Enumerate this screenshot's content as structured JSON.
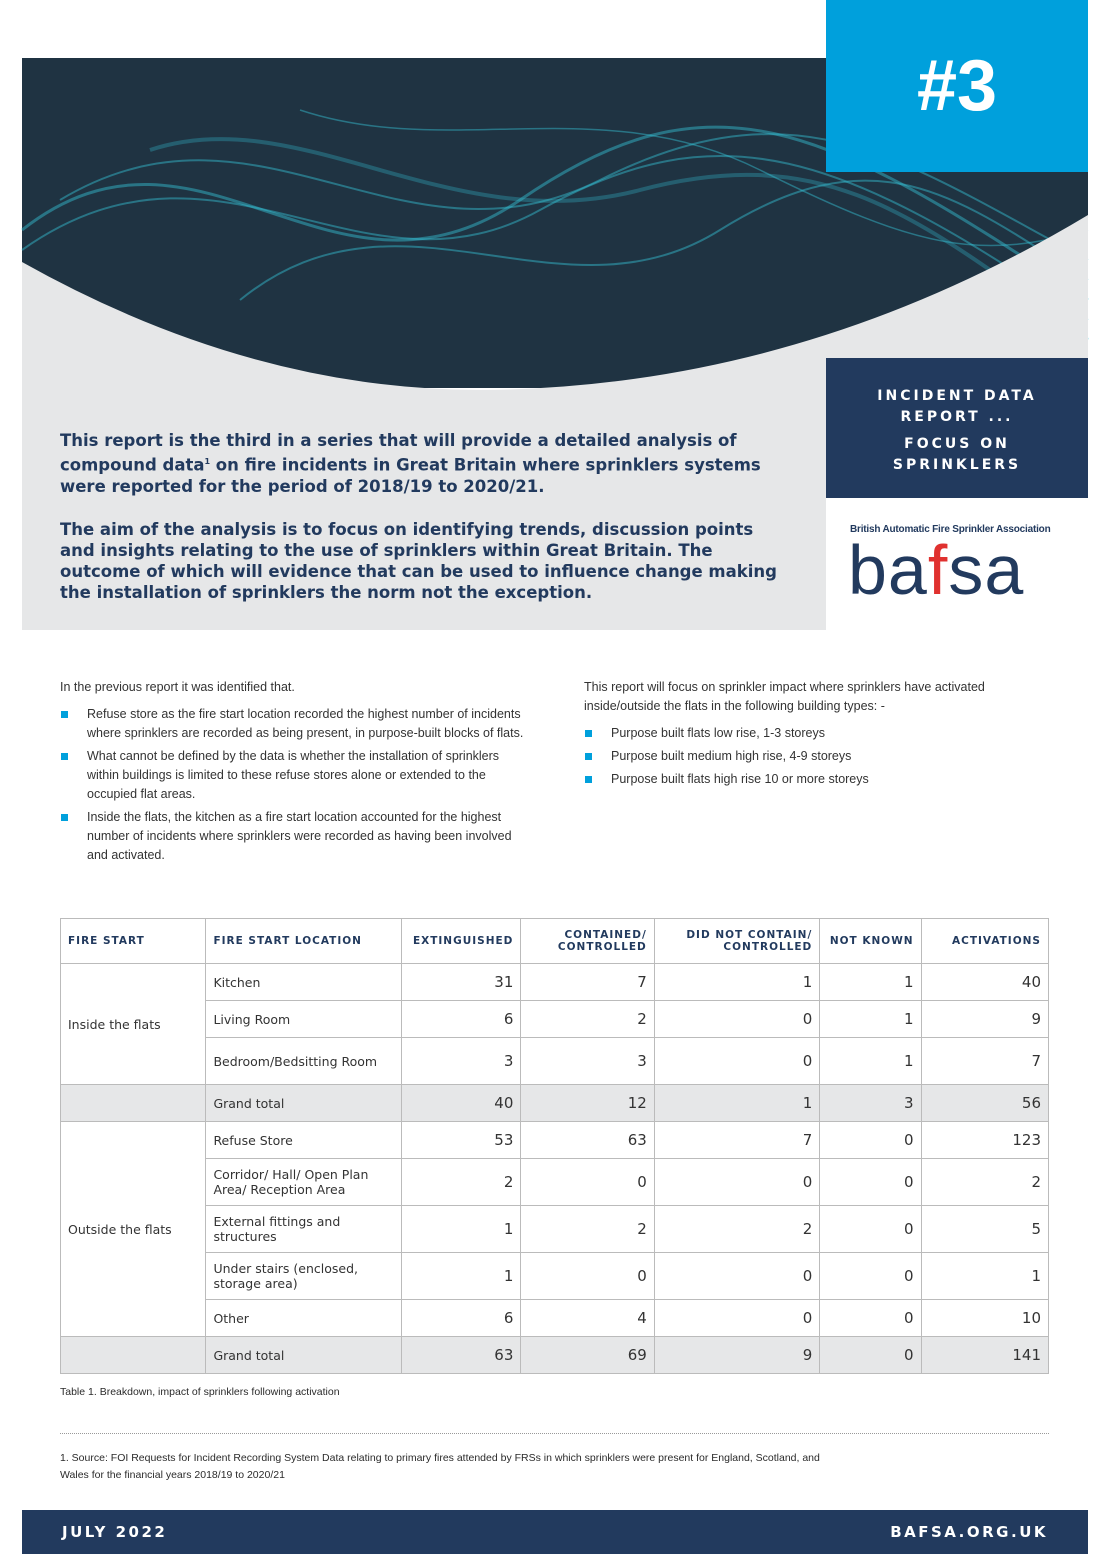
{
  "header": {
    "badge": "#3",
    "report_title_lines": [
      "INCIDENT DATA",
      "REPORT ...",
      "FOCUS ON",
      "SPRINKLERS"
    ],
    "org_name": "British Automatic Fire Sprinkler Association",
    "logo": [
      "ba",
      "f",
      "sa"
    ]
  },
  "intro": {
    "p1": {
      "before": "This report is the third in a series that will provide a detailed analysis of compound data",
      "sup": "1",
      "after": " on fire incidents in Great Britain where sprinklers systems were reported for the period of 2018/19 to 2020/21."
    },
    "p2": "The aim of the analysis is to focus on identifying trends, discussion points and insights relating to the use of sprinklers within Great Britain. The outcome of which will evidence that can be used to influence change making the installation of sprinklers the norm not the exception."
  },
  "left": {
    "lead": "In the previous report it was identified that.",
    "bullets": [
      "Refuse store as the fire start location recorded the highest number of incidents where sprinklers are recorded as being present, in purpose-built blocks of flats.",
      "What cannot be defined by the data is whether the installation of sprinklers within buildings is limited to these refuse stores alone or extended to the occupied flat areas.",
      "Inside the flats, the kitchen as a fire start location accounted for the highest number of incidents where sprinklers were recorded as having been involved and activated."
    ]
  },
  "right": {
    "lead": "This report will focus on sprinkler impact where sprinklers have activated inside/outside the flats in the following building types: -",
    "bullets": [
      "Purpose built flats low rise, 1-3 storeys",
      "Purpose built medium high rise, 4-9 storeys",
      "Purpose built flats high rise 10 or more storeys"
    ]
  },
  "table": {
    "headers": [
      "FIRE START",
      "FIRE START LOCATION",
      "EXTINGUISHED",
      "CONTAINED/ CONTROLLED",
      "DID NOT CONTAIN/ CONTROLLED",
      "NOT KNOWN",
      "ACTIVATIONS"
    ],
    "groups": [
      {
        "label": "Inside the flats",
        "rows": [
          [
            "Kitchen",
            31,
            7,
            1,
            1,
            40
          ],
          [
            "Living Room",
            6,
            2,
            0,
            1,
            9
          ],
          [
            "Bedroom/Bedsitting Room",
            3,
            3,
            0,
            1,
            7
          ]
        ],
        "total": [
          "Grand total",
          40,
          12,
          1,
          3,
          56
        ]
      },
      {
        "label": "Outside the flats",
        "rows": [
          [
            "Refuse Store",
            53,
            63,
            7,
            0,
            123
          ],
          [
            "Corridor/ Hall/ Open Plan Area/ Reception Area",
            2,
            0,
            0,
            0,
            2
          ],
          [
            "External fittings and structures",
            1,
            2,
            2,
            0,
            5
          ],
          [
            "Under stairs (enclosed, storage area)",
            1,
            0,
            0,
            0,
            1
          ],
          [
            "Other",
            6,
            4,
            0,
            0,
            10
          ]
        ],
        "total": [
          "Grand total",
          63,
          69,
          9,
          0,
          141
        ]
      }
    ]
  },
  "caption": "Table 1. Breakdown, impact of sprinklers following activation",
  "footnote": "1. Source: FOI Requests for Incident Recording System Data relating to primary fires attended by FRSs in which sprinklers were present for England, Scotland, and Wales for the financial years 2018/19 to 2020/21",
  "footer": {
    "date": "JULY 2022",
    "url": "BAFSA.ORG.UK"
  }
}
